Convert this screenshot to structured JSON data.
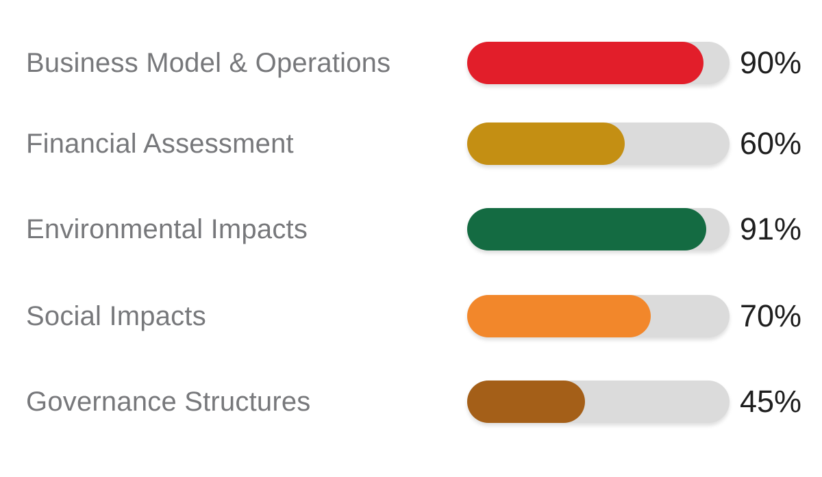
{
  "chart_data": {
    "type": "bar",
    "orientation": "horizontal",
    "title": "",
    "xlabel": "",
    "ylabel": "",
    "xlim": [
      0,
      100
    ],
    "grid": false,
    "legend": false,
    "categories": [
      "Business Model & Operations",
      "Financial Assessment",
      "Environmental Impacts",
      "Social Impacts",
      "Governance Structures"
    ],
    "values": [
      90,
      60,
      91,
      70,
      45
    ],
    "value_labels": [
      "90%",
      "60%",
      "91%",
      "70%",
      "45%"
    ],
    "bar_colors": [
      "#e21e2a",
      "#c48f13",
      "#146b42",
      "#f2872b",
      "#a45f18"
    ],
    "track_color": "#dbdbdb",
    "category_label_color": "#77787b",
    "value_label_color": "#1e1e1e",
    "background_color": "#ffffff"
  }
}
